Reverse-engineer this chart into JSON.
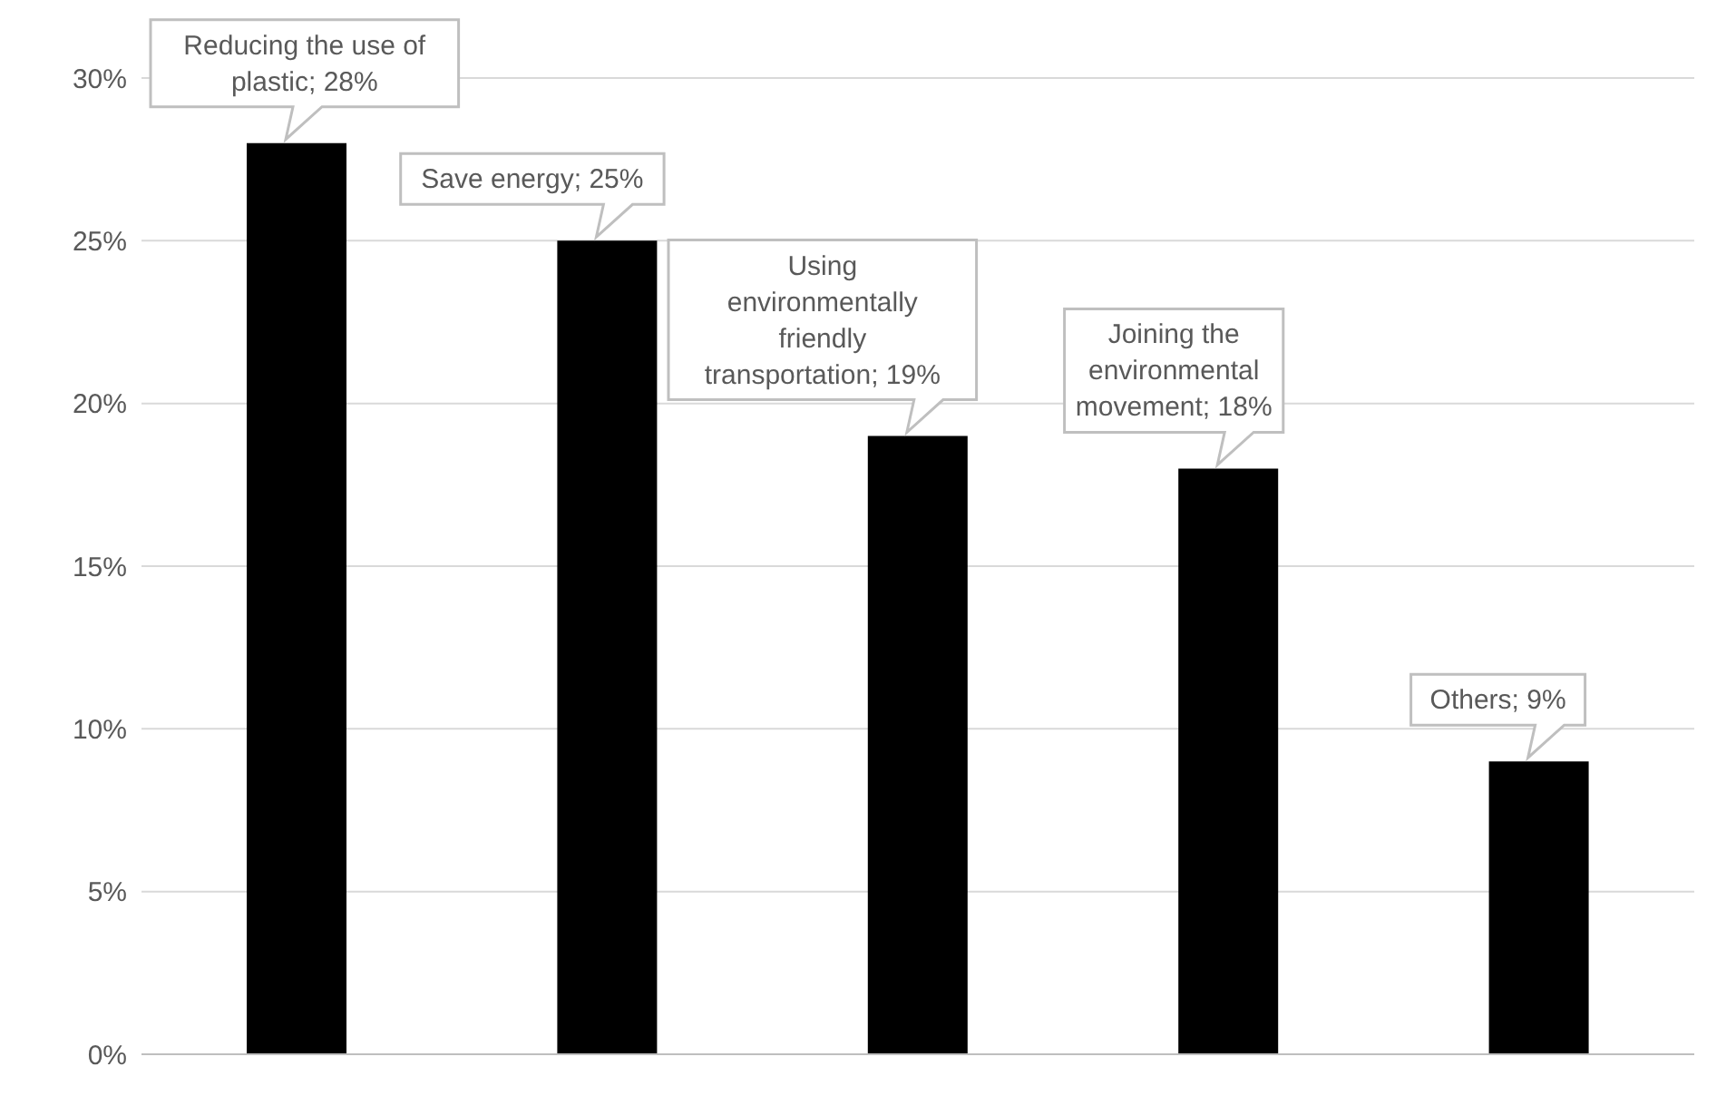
{
  "chart_data": {
    "type": "bar",
    "categories": [
      "Reducing the use of plastic",
      "Save energy",
      "Using environmentally friendly transportation",
      "Joining the environmental movement",
      "Others"
    ],
    "values": [
      28,
      25,
      19,
      18,
      9
    ],
    "color": "#000000",
    "ylim": [
      0,
      30
    ],
    "yticks": [
      {
        "value": 0,
        "label": "0%"
      },
      {
        "value": 5,
        "label": "5%"
      },
      {
        "value": 10,
        "label": "10%"
      },
      {
        "value": 15,
        "label": "15%"
      },
      {
        "value": 20,
        "label": "20%"
      },
      {
        "value": 25,
        "label": "25%"
      },
      {
        "value": 30,
        "label": "30%"
      }
    ],
    "grid": "y",
    "value_labels": [
      "; 28%",
      "; 25%",
      "; 19%",
      "; 18%",
      "; 9%"
    ],
    "tick_labels": "y"
  }
}
